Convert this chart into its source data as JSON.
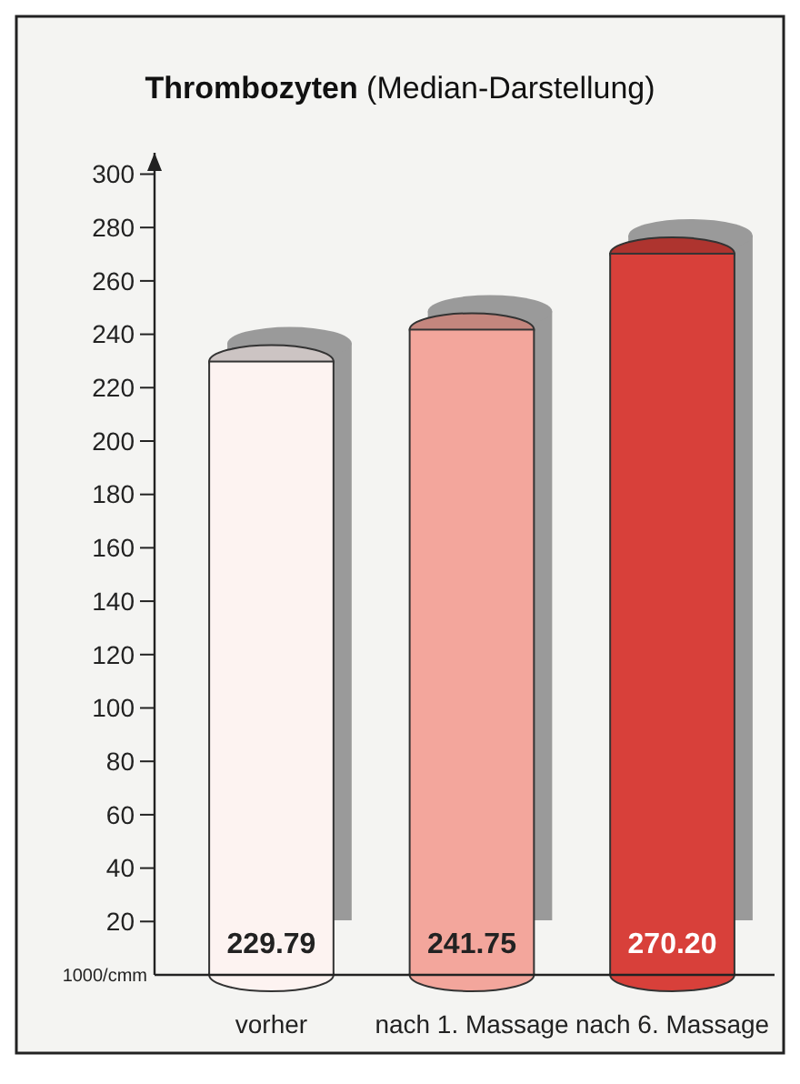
{
  "chart_data": {
    "type": "bar",
    "title": "Thrombozyten (Median-Darstellung)",
    "ylabel": "1000/cmm",
    "categories": [
      "vorher",
      "nach 1. Massage",
      "nach 6. Massage"
    ],
    "values": [
      229.79,
      241.75,
      270.2
    ],
    "colors": [
      "#fdf3f1",
      "#f3a69c",
      "#d8403a"
    ],
    "value_labels": [
      "229.79",
      "241.75",
      "270.20"
    ],
    "ylim": [
      0,
      308
    ],
    "yticks": [
      20,
      40,
      60,
      80,
      100,
      120,
      140,
      160,
      180,
      200,
      220,
      240,
      260,
      280,
      300
    ],
    "grid": false
  }
}
